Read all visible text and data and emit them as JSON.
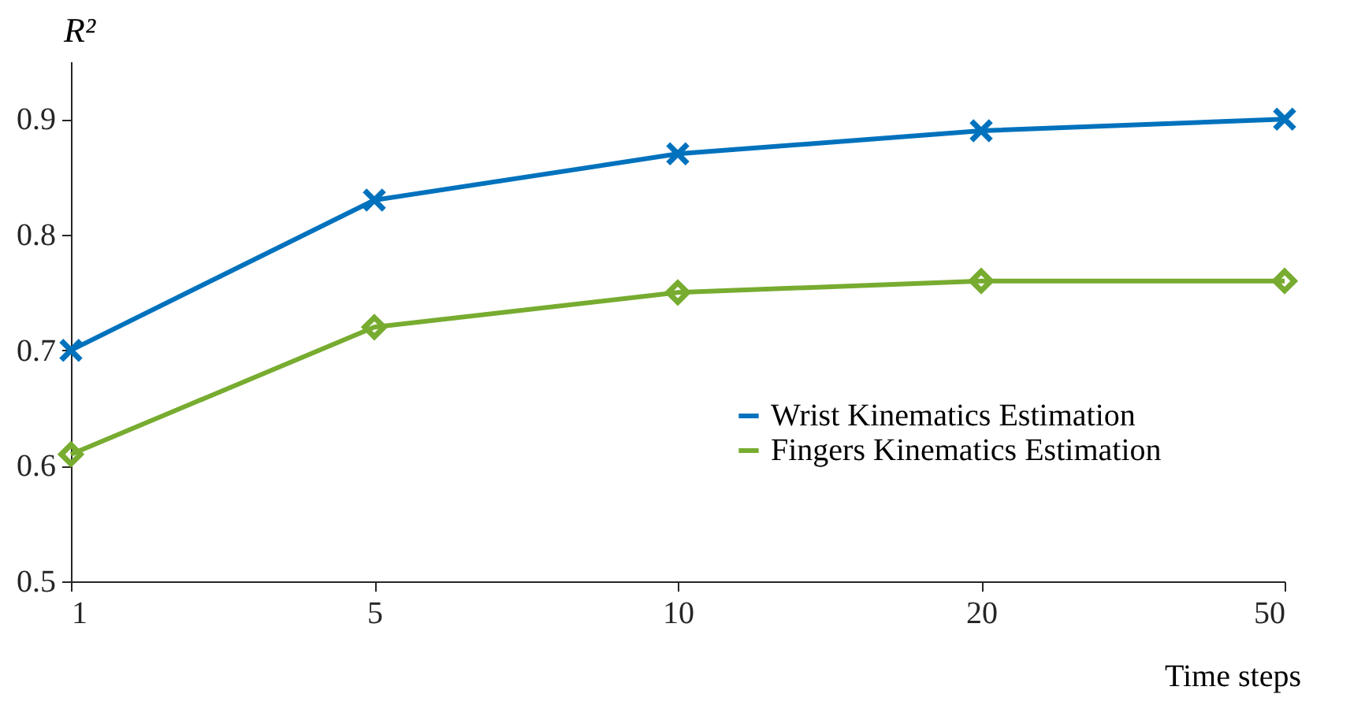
{
  "chart_data": {
    "type": "line",
    "xlabel": "Time steps",
    "ylabel": "R²",
    "categories": [
      "1",
      "5",
      "10",
      "20",
      "50"
    ],
    "series": [
      {
        "name": "Wrist Kinematics Estimation",
        "color": "#0072bd",
        "marker": "cross",
        "values": [
          0.7,
          0.83,
          0.87,
          0.89,
          0.9
        ]
      },
      {
        "name": "Fingers Kinematics Estimation",
        "color": "#77ac30",
        "marker": "diamond",
        "values": [
          0.61,
          0.72,
          0.75,
          0.76,
          0.76
        ]
      }
    ],
    "ylim": [
      0.5,
      0.95
    ],
    "yticks": [
      0.5,
      0.6,
      0.7,
      0.8,
      0.9
    ],
    "grid": false,
    "legend": "right",
    "line_style": "solid"
  }
}
